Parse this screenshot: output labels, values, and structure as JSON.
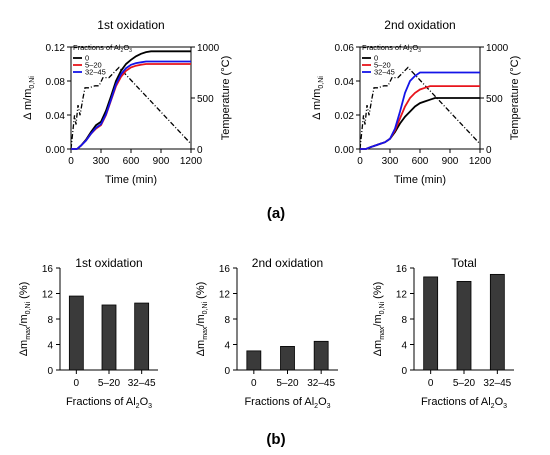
{
  "panel_labels": {
    "a": "(a)",
    "b": "(b)"
  },
  "sub_labels": {
    "x_sub": "0,Ni",
    "y_sub": "max",
    "al2o3_sub": "2",
    "al2o3_tail": "O",
    "al2o3_sub2": "3"
  },
  "colors": {
    "s0": "#000000",
    "s1": "#e8141c",
    "s2": "#1414e8",
    "temperature": "#000000",
    "bar": "#3a3a3a"
  },
  "chart_data": [
    {
      "id": "top-1st",
      "type": "line",
      "title": "1st oxidation",
      "xlabel": "Time (min)",
      "ylabel": "Δ m/m",
      "ylabel_sub": "0,Ni",
      "y2label": "Temperature (°C)",
      "xlim": [
        0,
        1200
      ],
      "ylim": [
        0,
        0.12
      ],
      "y2lim": [
        0,
        1000
      ],
      "xticks": [
        "0",
        "300",
        "600",
        "900",
        "1200"
      ],
      "yticks": [
        "0.00",
        "0.04",
        "0.08",
        "0.12"
      ],
      "y2ticks": [
        "0",
        "500",
        "1000"
      ],
      "legend_title": "Fractions of Al",
      "legend_placement": "top-left",
      "series": [
        {
          "name": "0",
          "color": "#000000",
          "x": [
            0,
            60,
            100,
            150,
            200,
            250,
            300,
            350,
            400,
            450,
            500,
            550,
            600,
            650,
            700,
            750,
            800,
            850,
            900,
            950,
            1200
          ],
          "y": [
            0,
            0,
            0.004,
            0.011,
            0.02,
            0.028,
            0.032,
            0.045,
            0.062,
            0.08,
            0.092,
            0.1,
            0.105,
            0.109,
            0.112,
            0.114,
            0.115,
            0.115,
            0.115,
            0.115,
            0.115
          ]
        },
        {
          "name": "5–20",
          "color": "#e8141c",
          "x": [
            0,
            60,
            100,
            150,
            200,
            250,
            300,
            350,
            400,
            450,
            500,
            550,
            600,
            650,
            700,
            750,
            800,
            850,
            900,
            950,
            1200
          ],
          "y": [
            0,
            0,
            0.004,
            0.01,
            0.018,
            0.024,
            0.028,
            0.04,
            0.057,
            0.074,
            0.085,
            0.092,
            0.096,
            0.098,
            0.099,
            0.1,
            0.1,
            0.1,
            0.1,
            0.1,
            0.1
          ]
        },
        {
          "name": "32–45",
          "color": "#1414e8",
          "x": [
            0,
            60,
            100,
            150,
            200,
            250,
            300,
            350,
            400,
            450,
            500,
            550,
            600,
            650,
            700,
            750,
            800,
            850,
            900,
            950,
            1200
          ],
          "y": [
            0,
            0,
            0.004,
            0.01,
            0.018,
            0.025,
            0.029,
            0.041,
            0.058,
            0.076,
            0.088,
            0.095,
            0.099,
            0.101,
            0.102,
            0.103,
            0.103,
            0.103,
            0.103,
            0.103,
            0.103
          ]
        }
      ],
      "temperature": {
        "x": [
          0,
          35,
          50,
          70,
          90,
          120,
          140,
          180,
          240,
          280,
          320,
          380,
          480,
          1200
        ],
        "y": [
          0,
          330,
          240,
          430,
          330,
          500,
          600,
          600,
          620,
          620,
          700,
          700,
          800,
          50
        ]
      }
    },
    {
      "id": "top-2nd",
      "type": "line",
      "title": "2nd oxidation",
      "xlabel": "Time (min)",
      "ylabel": "Δ m/m",
      "ylabel_sub": "0,Ni",
      "y2label": "Temperature (°C)",
      "xlim": [
        0,
        1200
      ],
      "ylim": [
        0,
        0.06
      ],
      "y2lim": [
        0,
        1000
      ],
      "xticks": [
        "0",
        "300",
        "600",
        "900",
        "1200"
      ],
      "yticks": [
        "0.00",
        "0.02",
        "0.04",
        "0.06"
      ],
      "y2ticks": [
        "0",
        "500",
        "1000"
      ],
      "legend_title": "Fractions of Al",
      "legend_placement": "top-left",
      "series": [
        {
          "name": "0",
          "color": "#000000",
          "x": [
            0,
            60,
            100,
            150,
            200,
            250,
            300,
            350,
            400,
            450,
            500,
            550,
            600,
            650,
            700,
            750,
            800,
            850,
            900,
            950,
            1200
          ],
          "y": [
            0,
            0,
            0.001,
            0.002,
            0.003,
            0.004,
            0.006,
            0.01,
            0.015,
            0.019,
            0.022,
            0.025,
            0.027,
            0.028,
            0.029,
            0.03,
            0.03,
            0.03,
            0.03,
            0.03,
            0.03
          ]
        },
        {
          "name": "5–20",
          "color": "#e8141c",
          "x": [
            0,
            60,
            100,
            150,
            200,
            250,
            300,
            350,
            400,
            450,
            500,
            550,
            600,
            650,
            700,
            750,
            800,
            850,
            900,
            950,
            1200
          ],
          "y": [
            0,
            0,
            0.001,
            0.002,
            0.003,
            0.004,
            0.006,
            0.011,
            0.018,
            0.025,
            0.03,
            0.033,
            0.035,
            0.036,
            0.037,
            0.037,
            0.037,
            0.037,
            0.037,
            0.037,
            0.037
          ]
        },
        {
          "name": "32–45",
          "color": "#1414e8",
          "x": [
            0,
            60,
            100,
            150,
            200,
            250,
            300,
            350,
            400,
            450,
            500,
            550,
            600,
            650,
            700,
            750,
            800,
            850,
            900,
            950,
            1200
          ],
          "y": [
            0,
            0,
            0.001,
            0.002,
            0.003,
            0.004,
            0.006,
            0.012,
            0.022,
            0.033,
            0.04,
            0.043,
            0.045,
            0.045,
            0.045,
            0.045,
            0.045,
            0.045,
            0.045,
            0.045,
            0.045
          ]
        }
      ],
      "temperature": {
        "x": [
          0,
          35,
          50,
          70,
          90,
          120,
          140,
          180,
          240,
          280,
          320,
          380,
          480,
          1200
        ],
        "y": [
          0,
          330,
          240,
          430,
          330,
          500,
          600,
          600,
          620,
          620,
          700,
          700,
          800,
          50
        ]
      }
    },
    {
      "id": "bottom-1st",
      "type": "bar",
      "title": "1st oxidation",
      "xlabel": "Fractions of Al",
      "ylabel": "Δm",
      "ylabel_mid": "/m",
      "ylabel_tail": " (%)",
      "categories": [
        "0",
        "5–20",
        "32–45"
      ],
      "values": [
        11.6,
        10.2,
        10.5
      ],
      "ylim": [
        0,
        16
      ],
      "yticks": [
        "0",
        "4",
        "8",
        "12",
        "16"
      ],
      "show_ylabel": true
    },
    {
      "id": "bottom-2nd",
      "type": "bar",
      "title": "2nd oxidation",
      "xlabel": "Fractions of Al",
      "ylabel": "Δm",
      "ylabel_mid": "/m",
      "ylabel_tail": " (%)",
      "categories": [
        "0",
        "5–20",
        "32–45"
      ],
      "values": [
        3.0,
        3.7,
        4.5
      ],
      "ylim": [
        0,
        16
      ],
      "yticks": [
        "0",
        "4",
        "8",
        "12",
        "16"
      ],
      "show_ylabel": true
    },
    {
      "id": "bottom-total",
      "type": "bar",
      "title": "Total",
      "xlabel": "Fractions of Al",
      "ylabel": "Δm",
      "ylabel_mid": "/m",
      "ylabel_tail": " (%)",
      "categories": [
        "0",
        "5–20",
        "32–45"
      ],
      "values": [
        14.6,
        13.9,
        15.0
      ],
      "ylim": [
        0,
        16
      ],
      "yticks": [
        "0",
        "4",
        "8",
        "12",
        "16"
      ],
      "show_ylabel": true
    }
  ]
}
